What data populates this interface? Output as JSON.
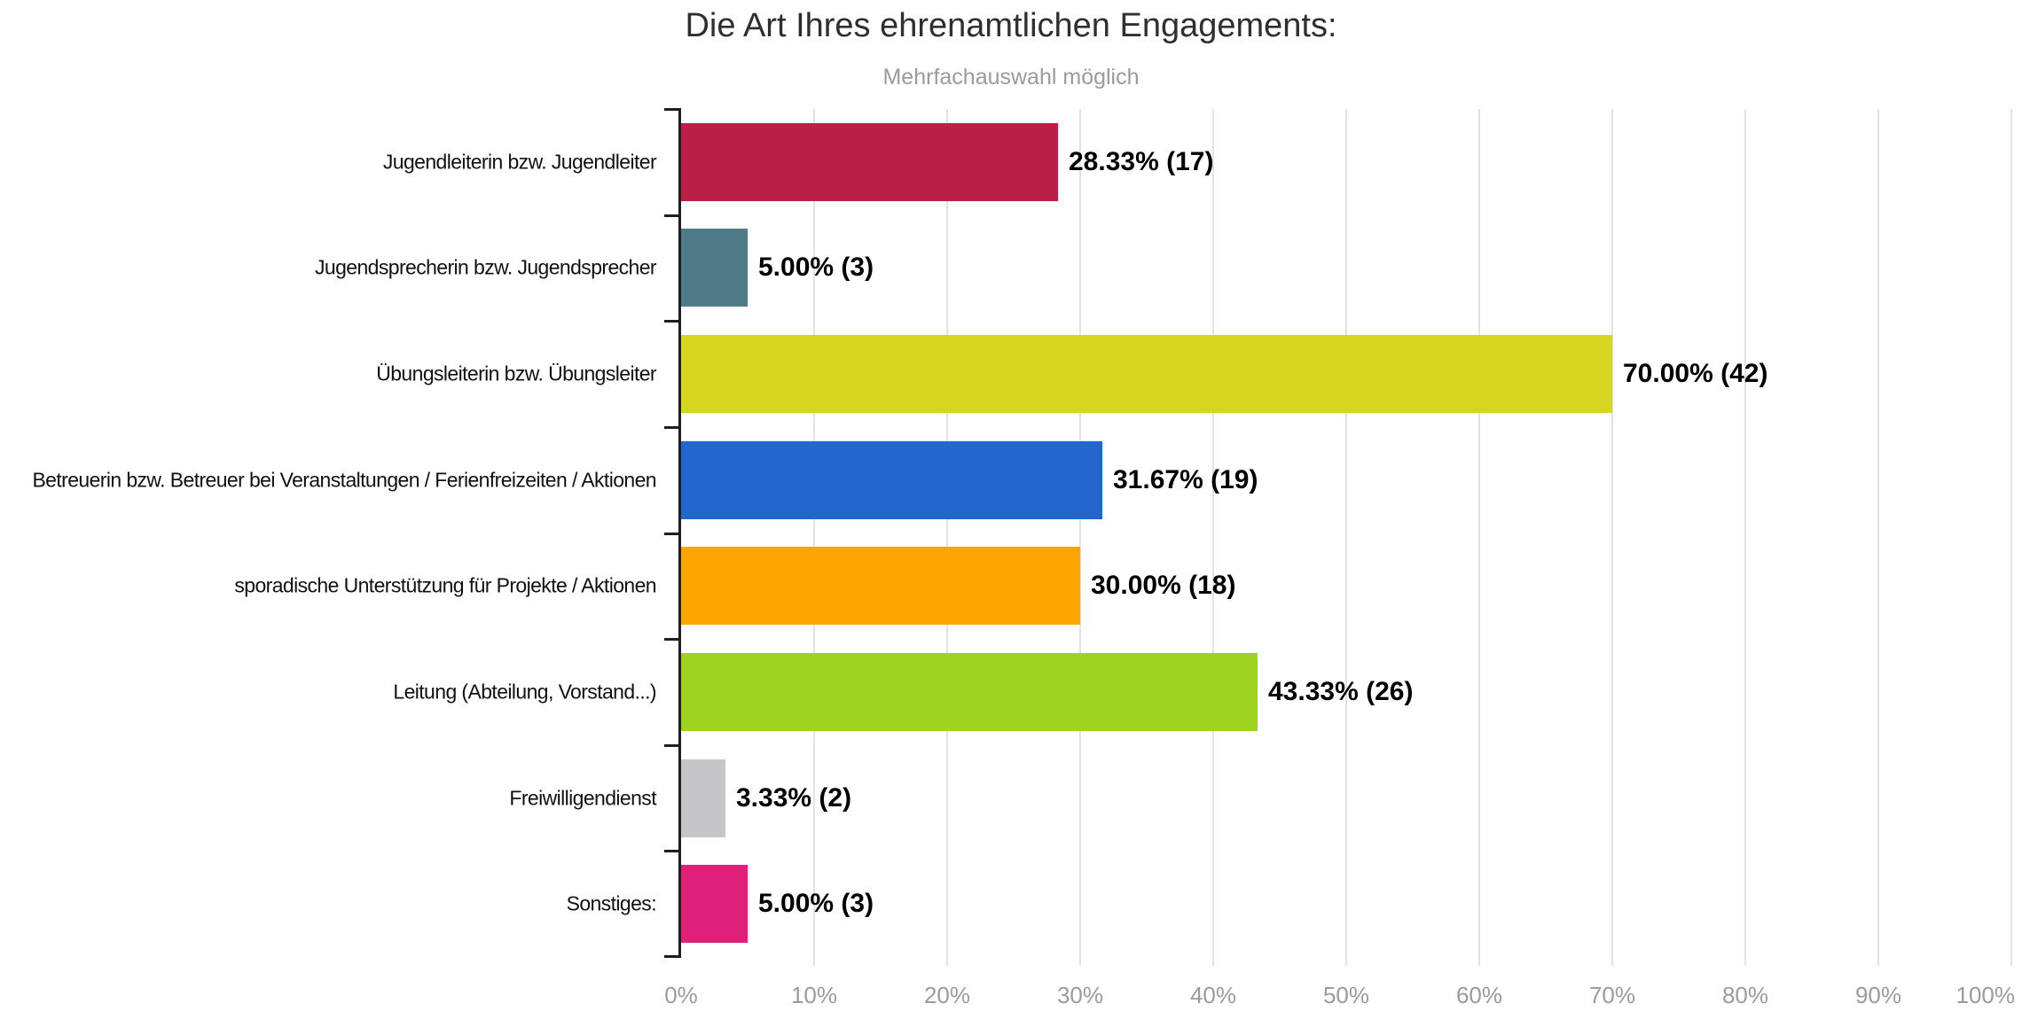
{
  "title": "Die Art Ihres ehrenamtlichen Engagements:",
  "subtitle": "Mehrfachauswahl möglich",
  "chart_data": {
    "type": "bar",
    "orientation": "horizontal",
    "title": "Die Art Ihres ehrenamtlichen Engagements:",
    "subtitle": "Mehrfachauswahl möglich",
    "categories": [
      "Jugendleiterin bzw. Jugendleiter",
      "Jugendsprecherin bzw. Jugendsprecher",
      "Übungsleiterin bzw. Übungsleiter",
      "Betreuerin bzw. Betreuer bei Veranstaltungen / Ferienfreizeiten / Aktionen",
      "sporadische Unterstützung für Projekte / Aktionen",
      "Leitung (Abteilung, Vorstand...)",
      "Freiwilligendienst",
      "Sonstiges:"
    ],
    "values": [
      28.33,
      5.0,
      70.0,
      31.67,
      30.0,
      43.33,
      3.33,
      5.0
    ],
    "counts": [
      17,
      3,
      42,
      19,
      18,
      26,
      2,
      3
    ],
    "value_labels": [
      "28.33% (17)",
      "5.00% (3)",
      "70.00% (42)",
      "31.67% (19)",
      "30.00% (18)",
      "43.33% (26)",
      "3.33% (2)",
      "5.00% (3)"
    ],
    "bar_colors": [
      "#b92047",
      "#4e7b86",
      "#d6d51f",
      "#2367cd",
      "#ffa502",
      "#9fd321",
      "#c6c6c8",
      "#de2178"
    ],
    "x_tick_labels": [
      "0%",
      "10%",
      "20%",
      "30%",
      "40%",
      "50%",
      "60%",
      "70%",
      "80%",
      "90%",
      "100%"
    ],
    "xlim": [
      0,
      100
    ],
    "grid": "vertical",
    "grid_color": "#e3e3e3",
    "axis_color": "#1f1f1f",
    "tick_label_color": "#9b9b9b",
    "title_color": "#2f2f2f",
    "subtitle_color": "#9b9b9b",
    "legend": "none"
  }
}
